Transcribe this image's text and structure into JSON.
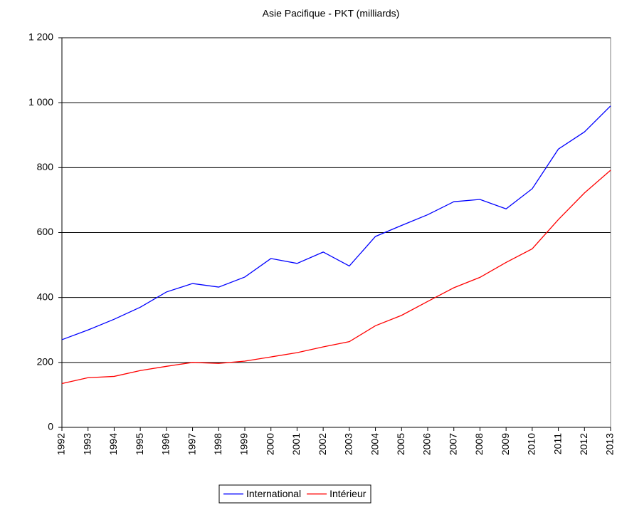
{
  "chart_data": {
    "type": "line",
    "title": "Asie Pacifique - PKT (milliards)",
    "x": [
      1992,
      1993,
      1994,
      1995,
      1996,
      1997,
      1998,
      1999,
      2000,
      2001,
      2002,
      2003,
      2004,
      2005,
      2006,
      2007,
      2008,
      2009,
      2010,
      2011,
      2012,
      2013
    ],
    "xlim": [
      1992,
      2013
    ],
    "xticks": [
      1992,
      1993,
      1994,
      1995,
      1996,
      1997,
      1998,
      1999,
      2000,
      2001,
      2002,
      2003,
      2004,
      2005,
      2006,
      2007,
      2008,
      2009,
      2010,
      2011,
      2012,
      2013
    ],
    "ylim": [
      0,
      1200
    ],
    "yticks": [
      0,
      200,
      400,
      600,
      800,
      {
        "value": 1000,
        "label": "1 000"
      },
      {
        "value": 1200,
        "label": "1 200"
      }
    ],
    "grid": true,
    "legend": "bottom",
    "series": [
      {
        "name": "International",
        "color": "#0000ff",
        "values": [
          270,
          300,
          333,
          370,
          417,
          443,
          432,
          463,
          520,
          505,
          540,
          497,
          588,
          622,
          655,
          695,
          702,
          673,
          735,
          857,
          910,
          990
        ]
      },
      {
        "name": "Intérieur",
        "color": "#ff0000",
        "values": [
          135,
          153,
          157,
          175,
          188,
          200,
          197,
          204,
          217,
          230,
          248,
          264,
          313,
          345,
          388,
          430,
          462,
          508,
          550,
          640,
          722,
          792
        ]
      }
    ]
  }
}
